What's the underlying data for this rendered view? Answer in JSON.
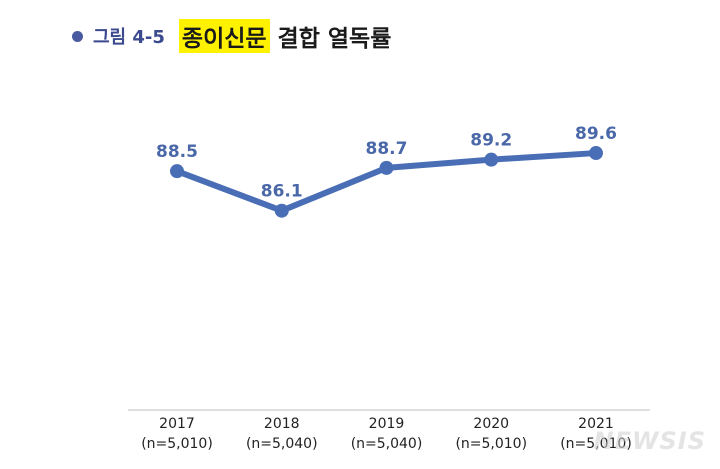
{
  "title": {
    "figure_label": "그림 4-5",
    "highlight": "종이신문",
    "rest": "결합 열독률"
  },
  "watermark": "NEWSIS",
  "colors": {
    "line": "#4a6eb5",
    "marker": "#4a6eb5",
    "value_label": "#4a68a8",
    "highlight": "#fff200",
    "bullet": "#4a5aa0"
  },
  "chart_data": {
    "type": "line",
    "categories": [
      "2017",
      "2018",
      "2019",
      "2020",
      "2021"
    ],
    "sample_sizes": [
      "(n=5,010)",
      "(n=5,040)",
      "(n=5,040)",
      "(n=5,010)",
      "(n=5,010)"
    ],
    "series": [
      {
        "values": [
          88.5,
          86.1,
          88.7,
          89.2,
          89.6
        ]
      }
    ],
    "data_labels": [
      "88.5",
      "86.1",
      "88.7",
      "89.2",
      "89.6"
    ],
    "title": "종이신문 결합 열독률",
    "xlabel": "",
    "ylabel": "",
    "ylim": [
      74,
      91
    ],
    "grid": false,
    "legend": "none"
  }
}
